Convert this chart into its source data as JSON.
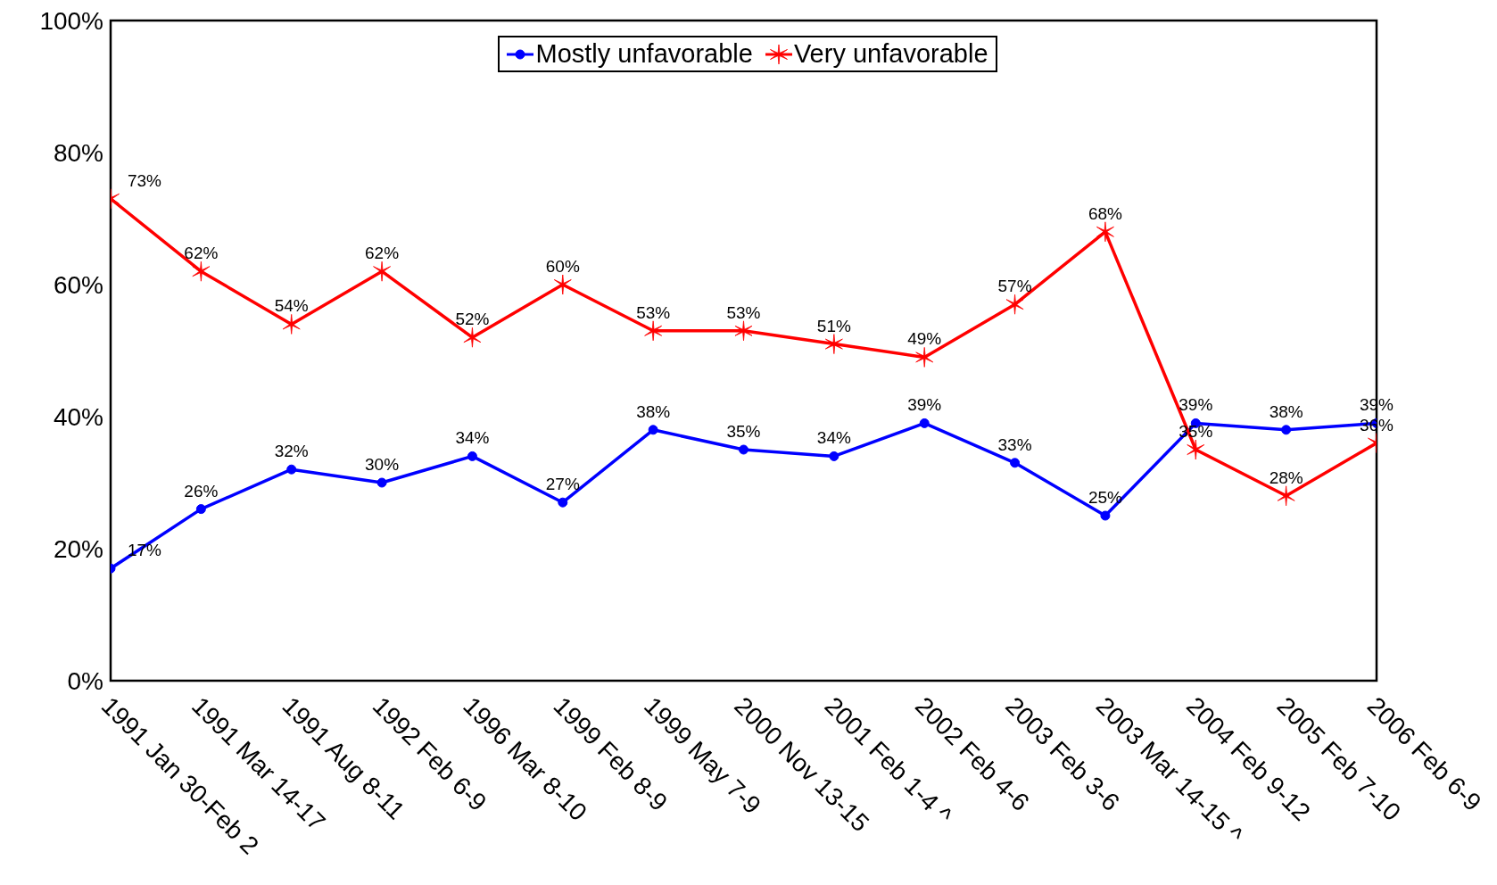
{
  "chart_data": {
    "type": "line",
    "categories": [
      "1991 Jan 30-Feb 2",
      "1991 Mar 14-17",
      "1991 Aug 8-11",
      "1992 Feb 6-9",
      "1996 Mar 8-10",
      "1999 Feb 8-9",
      "1999 May 7-9",
      "2000 Nov 13-15",
      "2001 Feb 1-4 ^",
      "2002 Feb 4-6",
      "2003 Feb 3-6",
      "2003 Mar 14-15 ^",
      "2004 Feb 9-12",
      "2005 Feb 7-10",
      "2006 Feb 6-9"
    ],
    "series": [
      {
        "name": "Mostly unfavorable",
        "color": "#0000ff",
        "marker": "circle",
        "values": [
          17,
          26,
          32,
          30,
          34,
          27,
          38,
          35,
          34,
          39,
          33,
          25,
          39,
          38,
          39
        ],
        "value_labels": [
          "17%",
          "26%",
          "32%",
          "30%",
          "34%",
          "27%",
          "38%",
          "35%",
          "34%",
          "39%",
          "33%",
          "25%",
          "39%",
          "38%",
          "39%"
        ]
      },
      {
        "name": "Very unfavorable",
        "color": "#ff0000",
        "marker": "cross",
        "values": [
          73,
          62,
          54,
          62,
          52,
          60,
          53,
          53,
          51,
          49,
          57,
          68,
          35,
          28,
          36
        ],
        "value_labels": [
          "73%",
          "62%",
          "54%",
          "62%",
          "52%",
          "60%",
          "53%",
          "53%",
          "51%",
          "49%",
          "57%",
          "68%",
          "35%",
          "28%",
          "36%"
        ]
      }
    ],
    "ylim": [
      0,
      100
    ],
    "yticks": [
      {
        "value": 0,
        "label": "0%"
      },
      {
        "value": 20,
        "label": "20%"
      },
      {
        "value": 40,
        "label": "40%"
      },
      {
        "value": 60,
        "label": "60%"
      },
      {
        "value": 80,
        "label": "80%"
      },
      {
        "value": 100,
        "label": "100%"
      }
    ],
    "legend": "top",
    "grid": false,
    "line_style": "solid"
  }
}
